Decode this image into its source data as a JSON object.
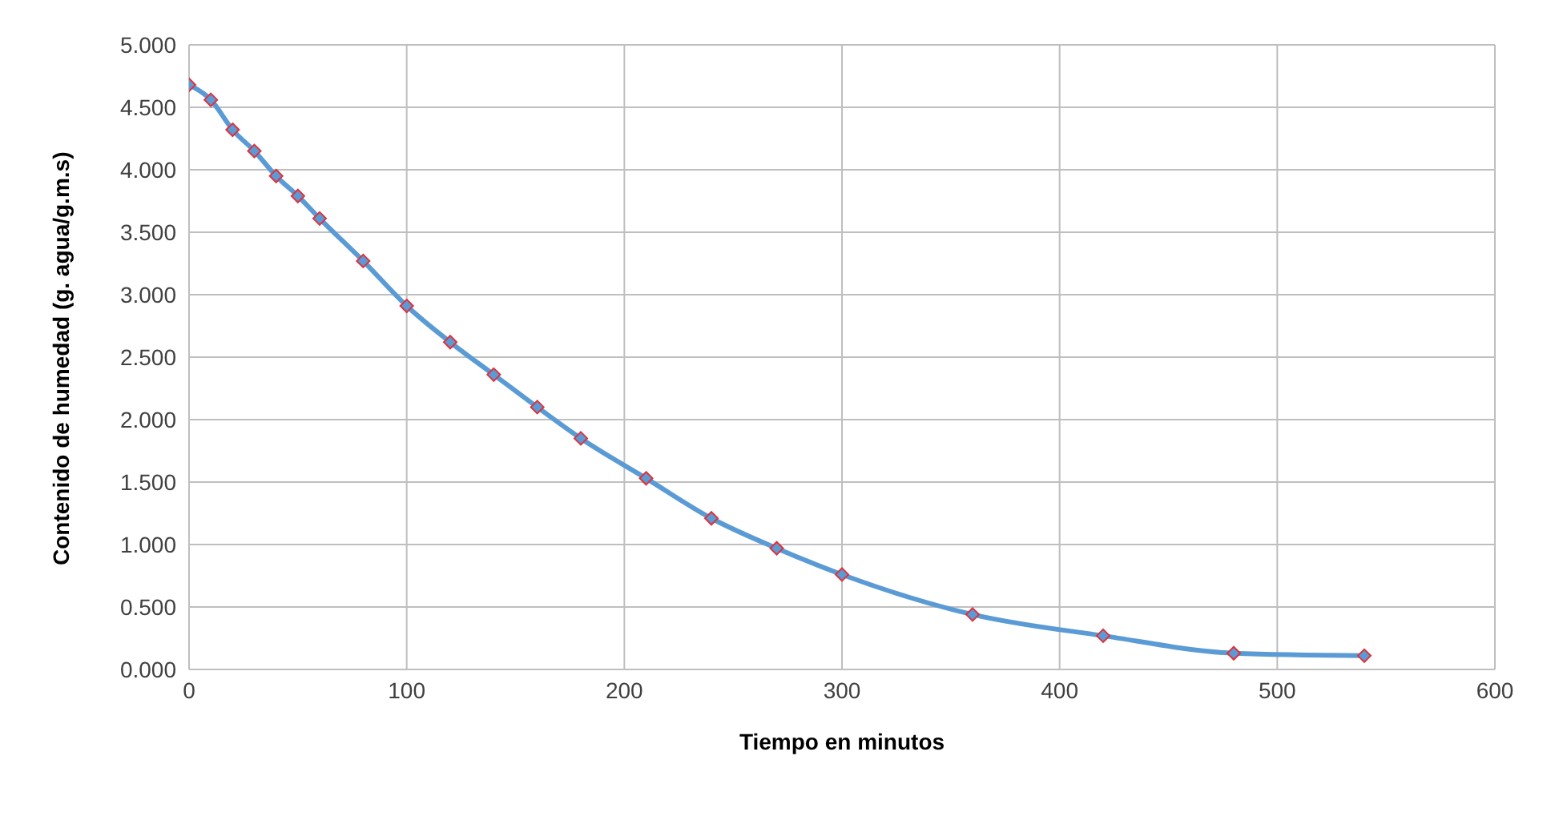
{
  "chart_data": {
    "type": "line",
    "xlabel": "Tiempo en minutos",
    "ylabel": "Contenido de humedad (g. agua/g.m.s)",
    "x": [
      0,
      10,
      20,
      30,
      40,
      50,
      60,
      80,
      100,
      120,
      140,
      160,
      180,
      210,
      240,
      270,
      300,
      360,
      420,
      480,
      540
    ],
    "series": [
      {
        "color": "#5b9bd5",
        "values": [
          4.68,
          4.56,
          4.32,
          4.15,
          3.95,
          3.79,
          3.61,
          3.27,
          2.91,
          2.62,
          2.36,
          2.1,
          1.85,
          1.53,
          1.21,
          0.97,
          0.76,
          0.44,
          0.27,
          0.13,
          0.11
        ]
      }
    ],
    "xlim": [
      0,
      600
    ],
    "xticks": [
      0,
      100,
      200,
      300,
      400,
      500,
      600
    ],
    "ylim": [
      0,
      5
    ],
    "yticks": [
      {
        "value": 0,
        "label": "0.000"
      },
      {
        "value": 0.5,
        "label": "0.500"
      },
      {
        "value": 1,
        "label": "1.000"
      },
      {
        "value": 1.5,
        "label": "1.500"
      },
      {
        "value": 2,
        "label": "2.000"
      },
      {
        "value": 2.5,
        "label": "2.500"
      },
      {
        "value": 3,
        "label": "3.000"
      },
      {
        "value": 3.5,
        "label": "3.500"
      },
      {
        "value": 4,
        "label": "4.000"
      },
      {
        "value": 4.5,
        "label": "4.500"
      },
      {
        "value": 5,
        "label": "5.000"
      }
    ],
    "grid": true,
    "marker": "diamond",
    "line_style": "solid",
    "legend": false
  }
}
